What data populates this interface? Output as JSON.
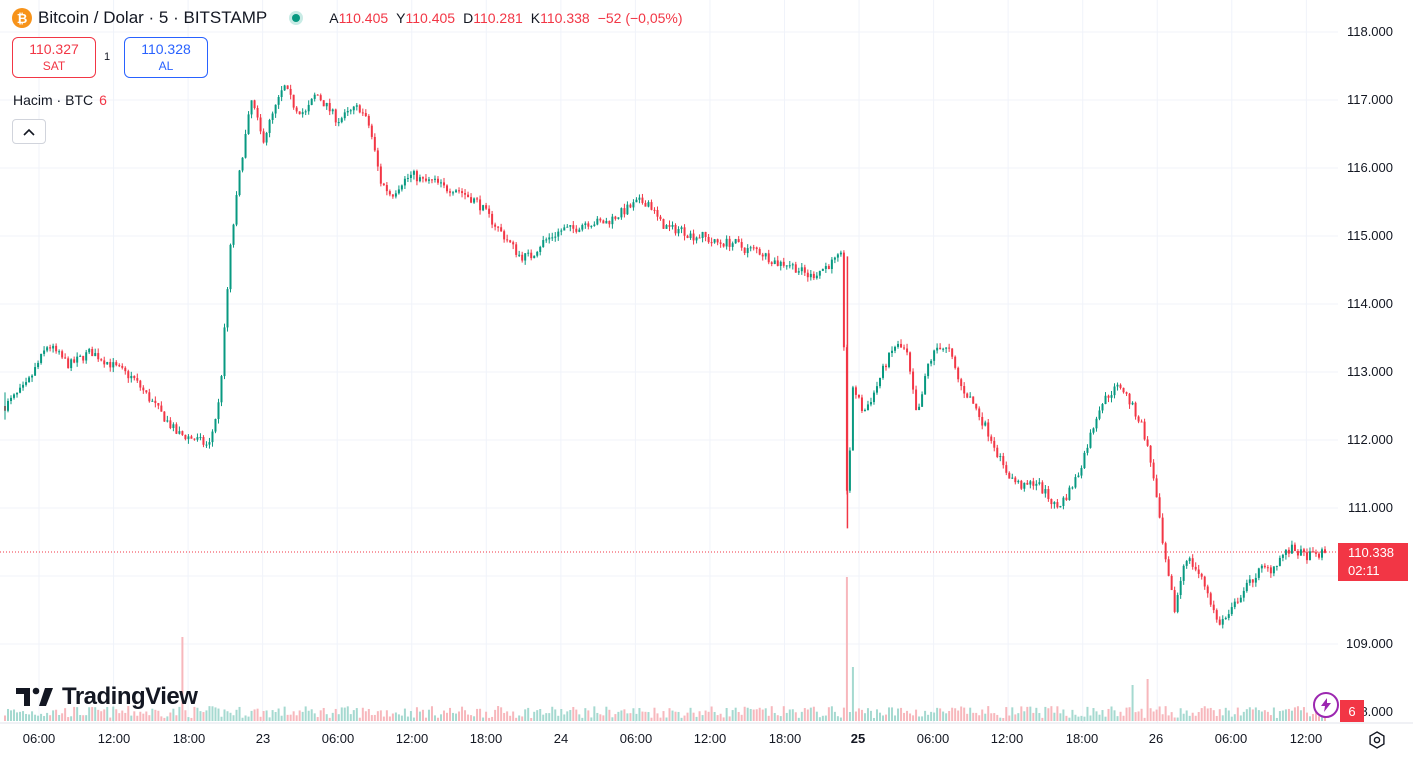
{
  "header": {
    "coin_icon": "bitcoin-icon",
    "coin_glyph": "₿",
    "title": "Bitcoin / Dolar · 5 · BITSTAMP",
    "ohlc": {
      "a_key": "A",
      "a_val": "110.405",
      "y_key": "Y",
      "y_val": "110.405",
      "d_key": "D",
      "d_val": "110.281",
      "k_key": "K",
      "k_val": "110.338",
      "change": "−52 (−0,05%)"
    }
  },
  "trade": {
    "sell_price": "110.327",
    "sell_label": "SAT",
    "spread": "1",
    "buy_price": "110.328",
    "buy_label": "AL"
  },
  "volume_legend": {
    "label": "Hacim · BTC",
    "value": "6"
  },
  "logo_text": "TradingView",
  "price_axis": [
    "118.000",
    "117.000",
    "116.000",
    "115.000",
    "114.000",
    "113.000",
    "112.000",
    "111.000",
    "109.000",
    "8.000"
  ],
  "time_axis": [
    "06:00",
    "12:00",
    "18:00",
    "23",
    "06:00",
    "12:00",
    "18:00",
    "24",
    "06:00",
    "12:00",
    "18:00",
    "25",
    "06:00",
    "12:00",
    "18:00",
    "26",
    "06:00",
    "12:00"
  ],
  "last_price": {
    "value": "110.338",
    "countdown": "02:11"
  },
  "volume_badge": "6",
  "colors": {
    "up": "#089981",
    "down": "#f23645",
    "grid": "#f0f3fa",
    "vol_up": "#a5d9d0",
    "vol_down": "#f7b7bc"
  },
  "chart_data": {
    "type": "candlestick",
    "symbol": "Bitcoin / Dolar",
    "interval": "5",
    "exchange": "BITSTAMP",
    "ylim": [
      108600,
      118200
    ],
    "x_ticks": [
      "06:00",
      "12:00",
      "18:00",
      "23",
      "06:00",
      "12:00",
      "18:00",
      "24",
      "06:00",
      "12:00",
      "18:00",
      "25",
      "06:00",
      "12:00",
      "18:00",
      "26",
      "06:00",
      "12:00"
    ],
    "price_path": [
      [
        0,
        112500
      ],
      [
        4,
        112800
      ],
      [
        8,
        113400
      ],
      [
        12,
        113100
      ],
      [
        16,
        113300
      ],
      [
        20,
        113100
      ],
      [
        24,
        112900
      ],
      [
        28,
        112500
      ],
      [
        32,
        112100
      ],
      [
        36,
        112000
      ],
      [
        38,
        111900
      ],
      [
        40,
        112600
      ],
      [
        42,
        114800
      ],
      [
        44,
        116100
      ],
      [
        46,
        117000
      ],
      [
        48,
        116400
      ],
      [
        50,
        116800
      ],
      [
        52,
        117200
      ],
      [
        54,
        116900
      ],
      [
        56,
        116800
      ],
      [
        58,
        117100
      ],
      [
        60,
        116900
      ],
      [
        62,
        116700
      ],
      [
        64,
        116800
      ],
      [
        66,
        116900
      ],
      [
        68,
        116600
      ],
      [
        70,
        115800
      ],
      [
        72,
        115600
      ],
      [
        74,
        115800
      ],
      [
        76,
        115900
      ],
      [
        78,
        115800
      ],
      [
        80,
        115800
      ],
      [
        82,
        115700
      ],
      [
        84,
        115700
      ],
      [
        86,
        115600
      ],
      [
        88,
        115500
      ],
      [
        90,
        115300
      ],
      [
        92,
        115100
      ],
      [
        94,
        114900
      ],
      [
        96,
        114700
      ],
      [
        98,
        114700
      ],
      [
        100,
        114900
      ],
      [
        102,
        115000
      ],
      [
        104,
        115100
      ],
      [
        106,
        115100
      ],
      [
        108,
        115200
      ],
      [
        110,
        115200
      ],
      [
        112,
        115200
      ],
      [
        114,
        115300
      ],
      [
        116,
        115400
      ],
      [
        118,
        115500
      ],
      [
        120,
        115500
      ],
      [
        122,
        115200
      ],
      [
        124,
        115100
      ],
      [
        126,
        115100
      ],
      [
        128,
        115000
      ],
      [
        130,
        115000
      ],
      [
        132,
        114900
      ],
      [
        134,
        114900
      ],
      [
        136,
        114900
      ],
      [
        138,
        114800
      ],
      [
        140,
        114800
      ],
      [
        142,
        114700
      ],
      [
        144,
        114600
      ],
      [
        146,
        114600
      ],
      [
        148,
        114500
      ],
      [
        150,
        114400
      ],
      [
        152,
        114500
      ],
      [
        154,
        114600
      ],
      [
        156,
        114700
      ],
      [
        157,
        110900
      ],
      [
        158,
        112800
      ],
      [
        160,
        112400
      ],
      [
        162,
        112700
      ],
      [
        164,
        113100
      ],
      [
        166,
        113400
      ],
      [
        168,
        113300
      ],
      [
        170,
        112300
      ],
      [
        172,
        113100
      ],
      [
        174,
        113400
      ],
      [
        176,
        113300
      ],
      [
        178,
        112800
      ],
      [
        180,
        112600
      ],
      [
        182,
        112300
      ],
      [
        184,
        112000
      ],
      [
        186,
        111600
      ],
      [
        188,
        111400
      ],
      [
        190,
        111300
      ],
      [
        192,
        111400
      ],
      [
        194,
        111200
      ],
      [
        196,
        111000
      ],
      [
        198,
        111200
      ],
      [
        200,
        111500
      ],
      [
        202,
        112000
      ],
      [
        204,
        112500
      ],
      [
        206,
        112700
      ],
      [
        208,
        112800
      ],
      [
        210,
        112500
      ],
      [
        212,
        112200
      ],
      [
        214,
        111500
      ],
      [
        216,
        110300
      ],
      [
        218,
        109500
      ],
      [
        220,
        110300
      ],
      [
        222,
        110100
      ],
      [
        224,
        109800
      ],
      [
        226,
        109300
      ],
      [
        228,
        109400
      ],
      [
        230,
        109700
      ],
      [
        232,
        109900
      ],
      [
        234,
        110100
      ],
      [
        236,
        110100
      ],
      [
        238,
        110300
      ],
      [
        240,
        110400
      ],
      [
        242,
        110300
      ],
      [
        244,
        110300
      ],
      [
        246,
        110338
      ]
    ],
    "volume_spikes": [
      [
        33,
        14
      ],
      [
        157,
        24
      ],
      [
        158,
        9
      ],
      [
        210,
        6
      ],
      [
        213,
        7
      ]
    ]
  }
}
